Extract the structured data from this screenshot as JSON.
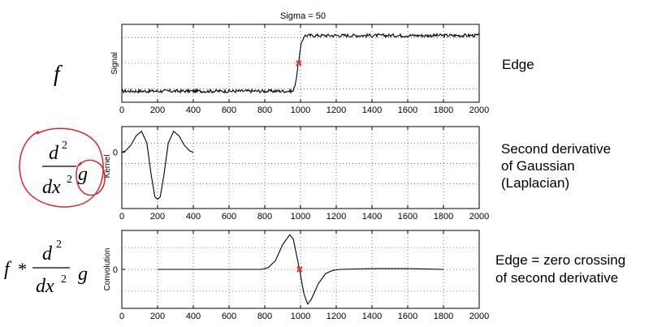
{
  "left_equations": {
    "row1": {
      "f": "f"
    },
    "row2": {
      "d": "d",
      "sup2": "2",
      "dx": "dx",
      "sup2b": "2",
      "g": "g"
    },
    "row3": {
      "f": "f",
      "star": "*",
      "d": "d",
      "sup2": "2",
      "dx": "dx",
      "sup2b": "2",
      "g": "g"
    }
  },
  "descriptions": {
    "row1": [
      "Edge"
    ],
    "row2": [
      "Second derivative",
      "of Gaussian",
      "(Laplacian)"
    ],
    "row3": [
      "Edge = zero crossing",
      "of second derivative"
    ]
  },
  "colors": {
    "trace": "#000000",
    "marker": "#ff2a2a",
    "annotation": "#d9262b",
    "grid": "#555555"
  },
  "chart_data": [
    {
      "type": "line",
      "title": "Sigma = 50",
      "xlabel": "",
      "ylabel": "Signal",
      "xlim": [
        0,
        2000
      ],
      "ylim": [
        -0.2,
        1.2
      ],
      "grid": true,
      "x_ticks": [
        0,
        200,
        400,
        600,
        800,
        1000,
        1200,
        1400,
        1600,
        1800,
        2000
      ],
      "x_tick_labels": [
        "0",
        "200",
        "400",
        "600",
        "800",
        "1000",
        "1200",
        "1400",
        "1600",
        "1800",
        "2000"
      ],
      "y_tick_labels": [],
      "series": [
        {
          "x": [
            0,
            960,
            975,
            990,
            1005,
            1020,
            2000
          ],
          "y": [
            0,
            0,
            0.2,
            0.55,
            0.85,
            1,
            1
          ],
          "noise_amplitude": 0.03
        }
      ],
      "markers": [
        {
          "x": 990,
          "y": 0.5
        }
      ]
    },
    {
      "type": "line",
      "title": "",
      "xlabel": "",
      "ylabel": "Kernel",
      "xlim": [
        0,
        2000
      ],
      "ylim": [
        -1.2,
        0.55
      ],
      "grid": true,
      "x_ticks": [
        0,
        200,
        400,
        600,
        800,
        1000,
        1200,
        1400,
        1600,
        1800,
        2000
      ],
      "x_tick_labels": [
        "0",
        "200",
        "400",
        "600",
        "800",
        "1000",
        "1200",
        "1400",
        "1600",
        "1800",
        "2000"
      ],
      "y_ticks": [
        0
      ],
      "y_tick_labels": [
        "0"
      ],
      "series": [
        {
          "x": [
            0,
            20,
            50,
            80,
            110,
            140,
            165,
            185,
            200,
            215,
            235,
            260,
            290,
            320,
            350,
            380,
            400
          ],
          "y": [
            0,
            0.03,
            0.15,
            0.35,
            0.45,
            0.2,
            -0.5,
            -0.95,
            -1.0,
            -0.95,
            -0.5,
            0.2,
            0.45,
            0.35,
            0.15,
            0.03,
            0
          ]
        }
      ]
    },
    {
      "type": "line",
      "title": "",
      "xlabel": "",
      "ylabel": "Convolution",
      "xlim": [
        0,
        2000
      ],
      "ylim": [
        -1.1,
        1.1
      ],
      "grid": true,
      "x_ticks": [
        0,
        200,
        400,
        600,
        800,
        1000,
        1200,
        1400,
        1600,
        1800,
        2000
      ],
      "x_tick_labels": [
        "0",
        "200",
        "400",
        "600",
        "800",
        "1000",
        "1200",
        "1400",
        "1600",
        "1800",
        "2000"
      ],
      "y_ticks": [
        0
      ],
      "y_tick_labels": [
        "0"
      ],
      "series": [
        {
          "x": [
            200,
            600,
            780,
            820,
            860,
            900,
            940,
            960,
            980,
            990,
            1000,
            1010,
            1020,
            1040,
            1060,
            1100,
            1140,
            1180,
            1220,
            1400,
            1600,
            1800
          ],
          "y": [
            0,
            0,
            0,
            0.05,
            0.25,
            0.7,
            0.98,
            0.85,
            0.35,
            0.1,
            -0.15,
            -0.45,
            -0.7,
            -0.98,
            -0.85,
            -0.4,
            -0.12,
            -0.03,
            0,
            0.02,
            0.02,
            0
          ]
        }
      ],
      "markers": [
        {
          "x": 995,
          "y": 0
        }
      ]
    }
  ]
}
